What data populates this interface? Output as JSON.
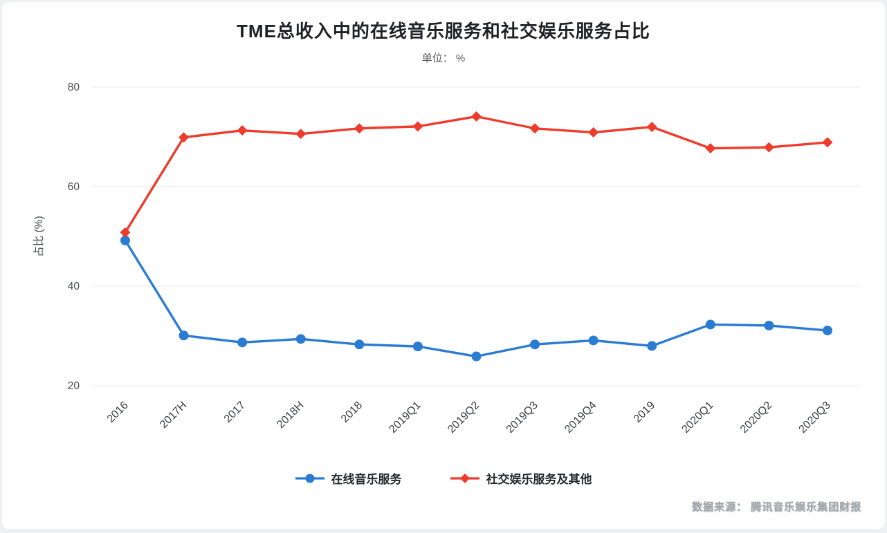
{
  "page": {
    "title": "TME总收入中的在线音乐服务和社交娱乐服务占比",
    "subtitle": "单位： %",
    "watermark": "数据来源： 腾讯音乐娱乐集团财报"
  },
  "chart_data": {
    "type": "line",
    "title": "TME总收入中的在线音乐服务和社交娱乐服务占比",
    "subtitle": "单位： %",
    "categories": [
      "2016",
      "2017H",
      "2017",
      "2018H",
      "2018",
      "2019Q1",
      "2019Q2",
      "2019Q3",
      "2019Q4",
      "2019",
      "2020Q1",
      "2020Q2",
      "2020Q3"
    ],
    "series": [
      {
        "name": "在线音乐服务",
        "color": "#2a7bd2",
        "marker": "circle",
        "values": [
          49.2,
          30.1,
          28.7,
          29.4,
          28.3,
          27.9,
          25.9,
          28.3,
          29.1,
          28.0,
          32.3,
          32.1,
          31.1
        ]
      },
      {
        "name": "社交娱乐服务及其他",
        "color": "#ee3b2b",
        "marker": "diamond",
        "values": [
          50.8,
          69.9,
          71.3,
          70.6,
          71.7,
          72.1,
          74.1,
          71.7,
          70.9,
          72.0,
          67.7,
          67.9,
          68.9
        ]
      }
    ],
    "xlabel": "",
    "ylabel": "占比 (%)",
    "ylim": [
      20,
      80
    ],
    "yticks": [
      20,
      40,
      60,
      80
    ],
    "grid": true,
    "legend_position": "bottom"
  }
}
